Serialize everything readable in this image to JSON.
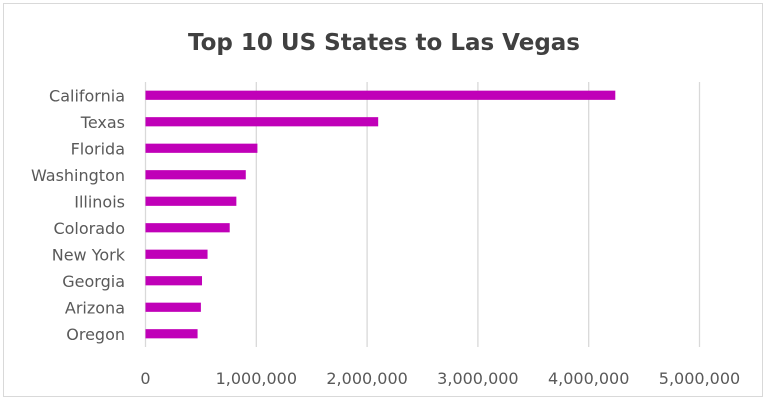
{
  "chart_data": {
    "type": "bar",
    "orientation": "horizontal",
    "title": "Top 10 US States to Las Vegas",
    "xlabel": "",
    "ylabel": "",
    "categories": [
      "California",
      "Texas",
      "Florida",
      "Washington",
      "Illinois",
      "Colorado",
      "New York",
      "Georgia",
      "Arizona",
      "Oregon"
    ],
    "values": [
      4240000,
      2100000,
      1010000,
      905000,
      820000,
      760000,
      560000,
      510000,
      500000,
      470000
    ],
    "xlim": [
      0,
      5000000
    ],
    "xticks": [
      0,
      1000000,
      2000000,
      3000000,
      4000000,
      5000000
    ],
    "xtick_labels": [
      "0",
      "1,000,000",
      "2,000,000",
      "3,000,000",
      "4,000,000",
      "5,000,000"
    ],
    "grid": "vertical",
    "legend": "none",
    "bar_color": "#c000b8"
  }
}
